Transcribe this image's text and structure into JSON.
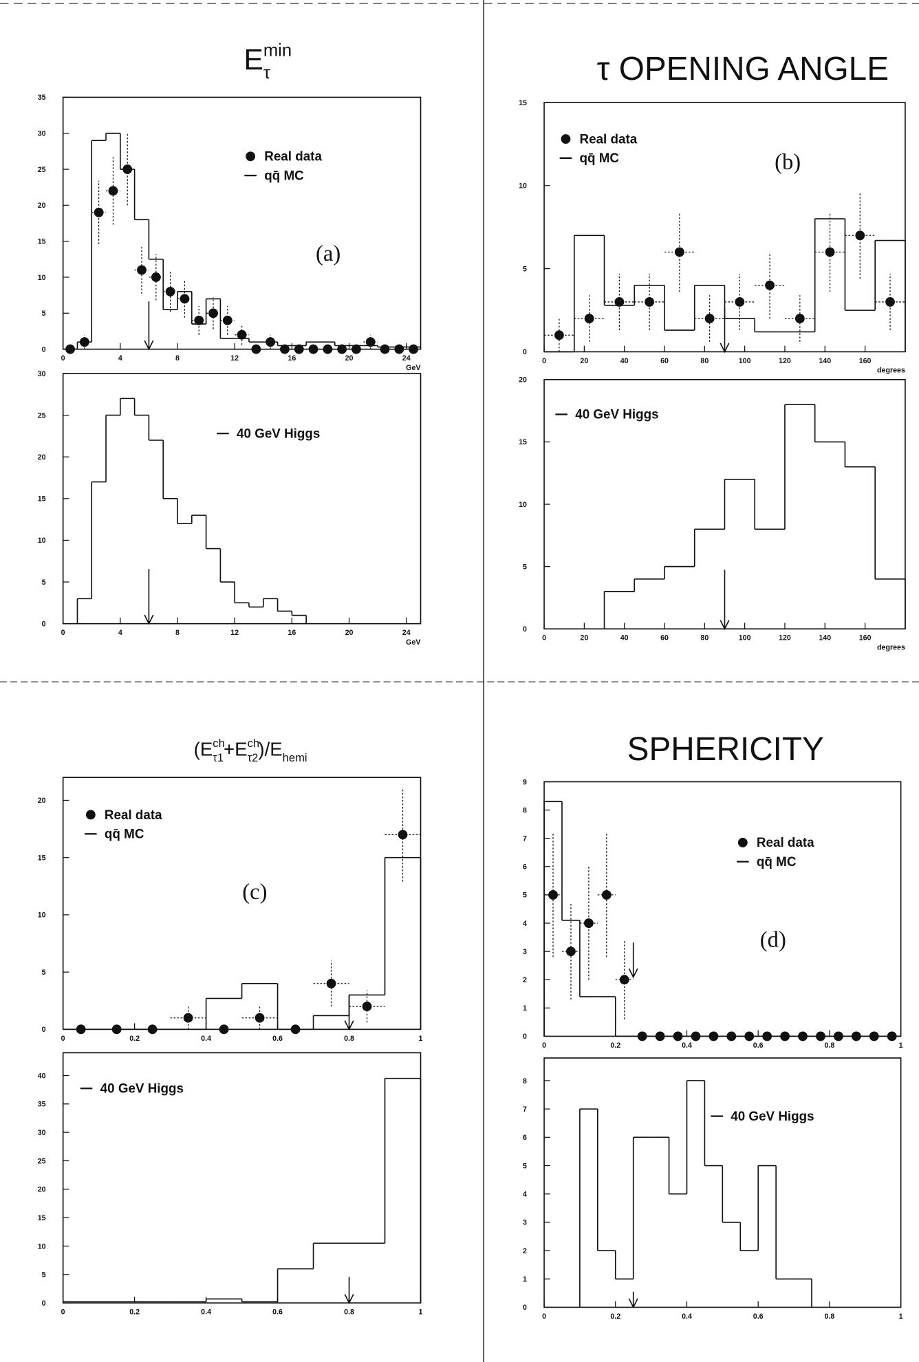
{
  "chart_data": [
    {
      "type": "histogram",
      "title_parts": [
        {
          "text": "E"
        },
        {
          "text": "min",
          "shift": "sup"
        },
        {
          "text": "τ",
          "shift": "sub"
        }
      ],
      "panel_label": "(a)",
      "xlim": [
        0,
        25
      ],
      "xticks": [
        0,
        4,
        8,
        12,
        16,
        20,
        24
      ],
      "xlabel": "GeV",
      "ylim": [
        0,
        35
      ],
      "yticks": [
        0,
        5,
        10,
        15,
        20,
        25,
        30,
        35
      ],
      "cut": 6,
      "series": [
        {
          "name": "Real data",
          "style": "points",
          "color": "#111",
          "x": [
            0.5,
            1.5,
            2.5,
            3.5,
            4.5,
            5.5,
            6.5,
            7.5,
            8.5,
            9.5,
            10.5,
            11.5,
            12.5,
            13.5,
            14.5,
            15.5,
            16.5,
            17.5,
            18.5,
            19.5,
            20.5,
            21.5,
            22.5,
            23.5,
            24.5
          ],
          "values": [
            0,
            1,
            19,
            22,
            25,
            11,
            10,
            8,
            7,
            4,
            5,
            4,
            2,
            0,
            1,
            0,
            0,
            0,
            0,
            0,
            0,
            1,
            0,
            0,
            0
          ],
          "errors": [
            0,
            1,
            4.4,
            4.7,
            5,
            3.3,
            3.2,
            2.8,
            2.6,
            2,
            2.2,
            2,
            1.4,
            0,
            1,
            0,
            0,
            0,
            0,
            0,
            0,
            1,
            0,
            0,
            0
          ],
          "xerr": 0.5
        },
        {
          "name": "qq̄ MC",
          "style": "step",
          "color": "#111",
          "bins": [
            0,
            1,
            2,
            3,
            4,
            5,
            6,
            7,
            8,
            9,
            10,
            11,
            12,
            13,
            14,
            15,
            16,
            17,
            18,
            19,
            20,
            21,
            22,
            23,
            24,
            25
          ],
          "values": [
            0,
            1,
            29,
            30,
            25,
            18,
            12.5,
            5.5,
            8,
            3.5,
            7,
            1.5,
            1.5,
            1,
            1,
            0.5,
            0.5,
            1,
            1,
            0.5,
            0.5,
            0.5,
            0.3,
            0.3,
            0.3
          ]
        }
      ]
    },
    {
      "type": "histogram",
      "xlim": [
        0,
        25
      ],
      "xticks": [
        0,
        4,
        8,
        12,
        16,
        20,
        24
      ],
      "xlabel": "GeV",
      "ylim": [
        0,
        30
      ],
      "yticks": [
        0,
        5,
        10,
        15,
        20,
        25,
        30
      ],
      "cut": 6,
      "series": [
        {
          "name": "40 GeV Higgs",
          "style": "step",
          "color": "#111",
          "bins": [
            1,
            2,
            3,
            4,
            5,
            6,
            7,
            8,
            9,
            10,
            11,
            12,
            13,
            14,
            15,
            16,
            17
          ],
          "values": [
            3,
            17,
            25,
            27,
            25,
            22,
            15,
            12,
            13,
            9,
            5,
            2.5,
            2,
            3,
            1.5,
            1
          ]
        }
      ]
    },
    {
      "type": "histogram",
      "title": "τ OPENING ANGLE",
      "panel_label": "(b)",
      "xlim": [
        0,
        180
      ],
      "xticks": [
        0,
        20,
        40,
        60,
        80,
        100,
        120,
        140,
        160
      ],
      "xlabel": "degrees",
      "ylim": [
        0,
        15
      ],
      "yticks": [
        0,
        5,
        10,
        15
      ],
      "cut": 90,
      "series": [
        {
          "name": "Real data",
          "style": "points",
          "color": "#111",
          "x": [
            7.5,
            22.5,
            37.5,
            52.5,
            67.5,
            82.5,
            97.5,
            112.5,
            127.5,
            142.5,
            157.5,
            172.5
          ],
          "values": [
            1,
            2,
            3,
            3,
            6,
            2,
            3,
            4,
            2,
            6,
            7,
            3
          ],
          "errors": [
            1,
            1.4,
            1.7,
            1.7,
            2.4,
            1.4,
            1.7,
            2,
            1.4,
            2.4,
            2.6,
            1.7
          ],
          "xerr": 7.5
        },
        {
          "name": "qq̄ MC",
          "style": "step",
          "color": "#111",
          "bins": [
            0,
            15,
            30,
            45,
            60,
            75,
            90,
            105,
            120,
            135,
            150,
            165,
            180
          ],
          "values": [
            0,
            7,
            2.8,
            4,
            1.3,
            4,
            2,
            1.2,
            1.2,
            8,
            2.5,
            6.7
          ]
        }
      ]
    },
    {
      "type": "histogram",
      "xlim": [
        0,
        180
      ],
      "xticks": [
        0,
        20,
        40,
        60,
        80,
        100,
        120,
        140,
        160
      ],
      "xlabel": "degrees",
      "ylim": [
        0,
        20
      ],
      "yticks": [
        0,
        5,
        10,
        15,
        20
      ],
      "cut": 90,
      "series": [
        {
          "name": "40 GeV Higgs",
          "style": "step",
          "color": "#111",
          "bins": [
            30,
            45,
            60,
            75,
            90,
            105,
            120,
            135,
            150,
            165,
            180
          ],
          "values": [
            3,
            4,
            5,
            8,
            12,
            8,
            18,
            15,
            13,
            4
          ]
        }
      ]
    },
    {
      "type": "histogram",
      "title_parts": [
        {
          "text": "(E"
        },
        {
          "text": "ch",
          "shift": "sup"
        },
        {
          "text": "τ1",
          "shift": "sub"
        },
        {
          "text": "+E"
        },
        {
          "text": "ch",
          "shift": "sup"
        },
        {
          "text": "τ2",
          "shift": "sub"
        },
        {
          "text": ")/E"
        },
        {
          "text": "hemi",
          "shift": "sub"
        }
      ],
      "panel_label": "(c)",
      "xlim": [
        0,
        1
      ],
      "xticks": [
        0,
        0.2,
        0.4,
        0.6,
        0.8,
        1
      ],
      "ylim": [
        0,
        22
      ],
      "yticks": [
        0,
        5,
        10,
        15,
        20
      ],
      "cut": 0.8,
      "series": [
        {
          "name": "Real data",
          "style": "points",
          "color": "#111",
          "x": [
            0.05,
            0.15,
            0.25,
            0.35,
            0.45,
            0.55,
            0.65,
            0.75,
            0.85,
            0.95
          ],
          "values": [
            0,
            0,
            0,
            1,
            0,
            1,
            0,
            4,
            2,
            17
          ],
          "errors": [
            0,
            0,
            0,
            1,
            0,
            1,
            0,
            2,
            1.4,
            4.1
          ],
          "xerr": 0.05
        },
        {
          "name": "qq̄ MC",
          "style": "step",
          "color": "#111",
          "bins": [
            0,
            0.1,
            0.2,
            0.3,
            0.4,
            0.5,
            0.6,
            0.7,
            0.8,
            0.9,
            1
          ],
          "values": [
            0,
            0,
            0,
            0,
            2.7,
            4,
            0,
            1.2,
            3,
            15
          ]
        }
      ]
    },
    {
      "type": "histogram",
      "xlim": [
        0,
        1
      ],
      "xticks": [
        0,
        0.2,
        0.4,
        0.6,
        0.8,
        1
      ],
      "ylim": [
        0,
        44
      ],
      "yticks": [
        0,
        5,
        10,
        15,
        20,
        25,
        30,
        35,
        40
      ],
      "cut": 0.8,
      "series": [
        {
          "name": "40 GeV Higgs",
          "style": "step",
          "color": "#111",
          "bins": [
            0,
            0.1,
            0.2,
            0.3,
            0.4,
            0.5,
            0.6,
            0.7,
            0.8,
            0.9,
            1
          ],
          "values": [
            0.2,
            0.2,
            0.2,
            0.2,
            0.7,
            0.2,
            6,
            10.5,
            10.5,
            39.5
          ]
        }
      ]
    },
    {
      "type": "histogram",
      "title": "SPHERICITY",
      "panel_label": "(d)",
      "xlim": [
        0,
        1
      ],
      "xticks": [
        0,
        0.2,
        0.4,
        0.6,
        0.8,
        1
      ],
      "ylim": [
        0,
        9
      ],
      "yticks": [
        0,
        1,
        2,
        3,
        4,
        5,
        6,
        7,
        8,
        9
      ],
      "cut": 0.25,
      "series": [
        {
          "name": "Real data",
          "style": "points",
          "color": "#111",
          "x": [
            0.025,
            0.075,
            0.125,
            0.175,
            0.225,
            0.275,
            0.325,
            0.375,
            0.425,
            0.475,
            0.525,
            0.575,
            0.625,
            0.675,
            0.725,
            0.775,
            0.825,
            0.875,
            0.925,
            0.975
          ],
          "values": [
            5,
            3,
            4,
            5,
            2,
            0,
            0,
            0,
            0,
            0,
            0,
            0,
            0,
            0,
            0,
            0,
            0,
            0,
            0,
            0
          ],
          "errors": [
            2.2,
            1.7,
            2,
            2.2,
            1.4,
            0,
            0,
            0,
            0,
            0,
            0,
            0,
            0,
            0,
            0,
            0,
            0,
            0,
            0,
            0
          ],
          "xerr": 0.025
        },
        {
          "name": "qq̄ MC",
          "style": "step",
          "color": "#111",
          "bins": [
            0,
            0.05,
            0.1,
            0.15,
            0.2,
            0.25,
            0.3,
            0.35,
            0.4,
            0.45,
            0.5,
            0.55,
            0.6,
            0.65,
            0.7,
            0.75,
            0.8,
            0.85,
            0.9,
            0.95,
            1
          ],
          "values": [
            8.3,
            4.1,
            1.4,
            1.4,
            0,
            0,
            0,
            0,
            0,
            0,
            0,
            0,
            0,
            0,
            0,
            0,
            0,
            0,
            0,
            0
          ]
        }
      ]
    },
    {
      "type": "histogram",
      "xlim": [
        0,
        1
      ],
      "xticks": [
        0,
        0.2,
        0.4,
        0.6,
        0.8,
        1
      ],
      "ylim": [
        0,
        8.8
      ],
      "yticks": [
        0,
        1,
        2,
        3,
        4,
        5,
        6,
        7,
        8
      ],
      "cut": 0.25,
      "series": [
        {
          "name": "40 GeV Higgs",
          "style": "step",
          "color": "#111",
          "bins": [
            0.1,
            0.15,
            0.2,
            0.25,
            0.3,
            0.35,
            0.4,
            0.45,
            0.5,
            0.55,
            0.6,
            0.65,
            0.7,
            0.75
          ],
          "values": [
            7,
            2,
            1,
            6,
            6,
            4,
            8,
            5,
            3,
            2,
            5,
            1,
            1
          ]
        }
      ]
    }
  ]
}
